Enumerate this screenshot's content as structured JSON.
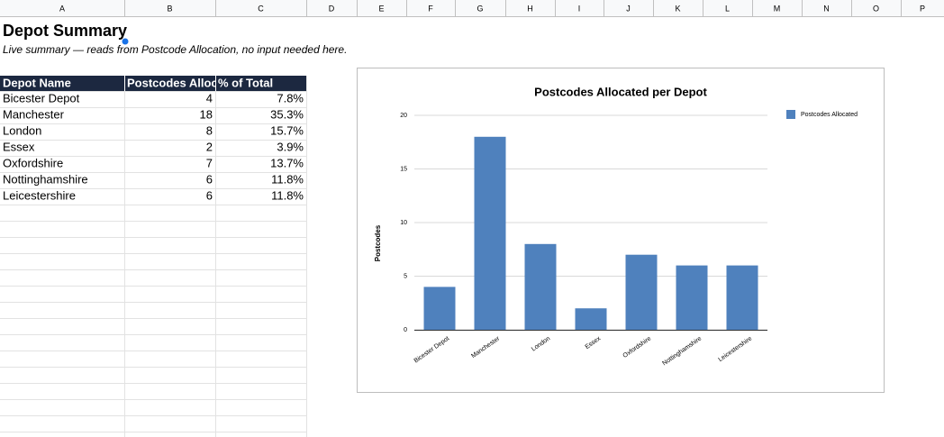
{
  "sheet": {
    "columns": [
      "A",
      "B",
      "C",
      "D",
      "E",
      "F",
      "G",
      "H",
      "I",
      "J",
      "K",
      "L",
      "M",
      "N",
      "O",
      "P"
    ],
    "title": "Depot Summary",
    "subtitle": "Live summary — reads from Postcode Allocation, no input needed here.",
    "table": {
      "header": [
        "Depot Name",
        "Postcodes Allocated",
        "% of Total"
      ],
      "rows": [
        [
          "Bicester Depot",
          "4",
          "7.8%"
        ],
        [
          "Manchester",
          "18",
          "35.3%"
        ],
        [
          "London",
          "8",
          "15.7%"
        ],
        [
          "Essex",
          "2",
          "3.9%"
        ],
        [
          "Oxfordshire",
          "7",
          "13.7%"
        ],
        [
          "Nottinghamshire",
          "6",
          "11.8%"
        ],
        [
          "Leicestershire",
          "6",
          "11.8%"
        ]
      ]
    }
  },
  "chart_data": {
    "type": "bar",
    "title": "Postcodes Allocated per Depot",
    "y_label": "Postcodes",
    "categories": [
      "Bicester Depot",
      "Manchester",
      "London",
      "Essex",
      "Oxfordshire",
      "Nottinghamshire",
      "Leicestershire"
    ],
    "series": [
      {
        "name": "Postcodes Allocated",
        "color": "#4f81bd",
        "values": [
          4,
          18,
          8,
          2,
          7,
          6,
          6
        ]
      }
    ],
    "ylim": [
      0,
      20
    ],
    "yticks": [
      0,
      5,
      10,
      15,
      20
    ],
    "grid": true,
    "legend": "right"
  }
}
